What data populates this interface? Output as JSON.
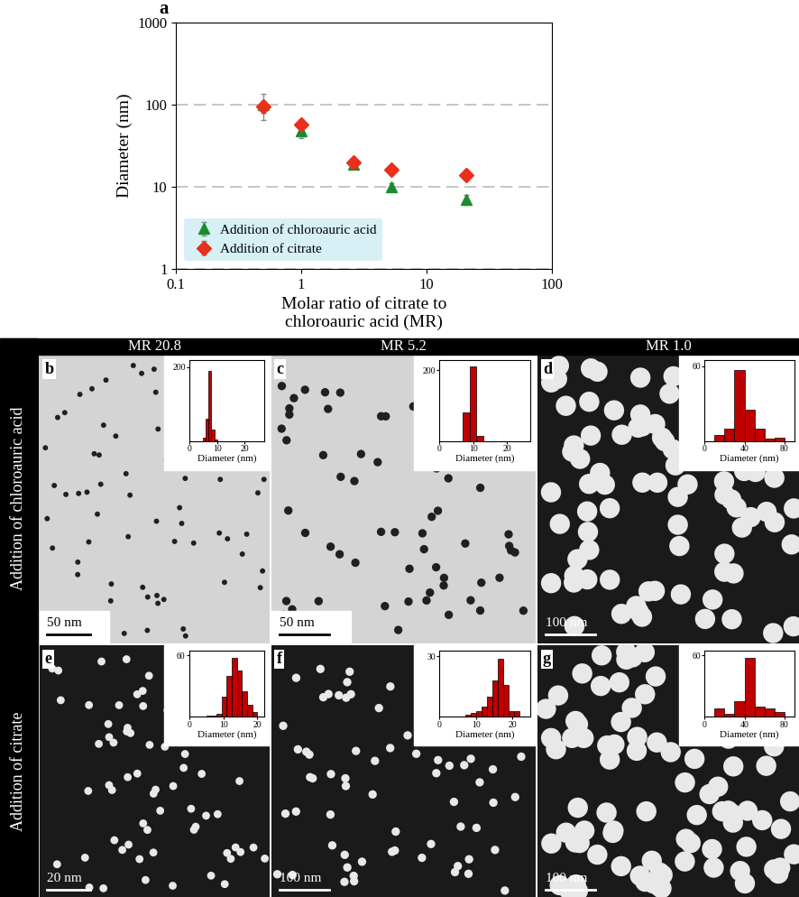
{
  "chart_data": [
    {
      "type": "scatter",
      "panel": "a",
      "xlabel": "Molar ratio of citrate to\nchloroauric acid (MR)",
      "ylabel": "Diameter (nm)",
      "log": true,
      "xlim": [
        0.1,
        100
      ],
      "xticks": [
        0.1,
        1,
        10,
        100
      ],
      "ylim": [
        1,
        1000
      ],
      "yticks": [
        1,
        10,
        100,
        1000
      ],
      "grid": "y",
      "legend": "lower left",
      "series": [
        {
          "name": "Addition of chloroauric acid",
          "color": "#1a8c2e",
          "marker": "triangle",
          "x": [
            0.5,
            1.0,
            2.6,
            5.2,
            20.8
          ],
          "values": [
            100,
            48,
            19,
            10,
            7
          ],
          "errors": [
            35,
            9,
            2,
            1,
            1
          ]
        },
        {
          "name": "Addition of citrate",
          "color": "#e8301c",
          "marker": "diamond",
          "x": [
            0.5,
            1.0,
            2.6,
            5.2,
            20.8
          ],
          "values": [
            95,
            57,
            20,
            16,
            14
          ],
          "errors": [
            15,
            10,
            2,
            2,
            2
          ]
        }
      ]
    },
    {
      "type": "histogram",
      "panel": "b",
      "scale_bar": "50 nm",
      "xlabel": "Diameter (nm)",
      "bins": [
        5,
        6,
        7,
        8,
        9,
        10
      ],
      "counts": [
        10,
        60,
        190,
        30,
        5
      ],
      "color": "#c00000",
      "xlim": [
        0,
        27
      ],
      "xticks": [
        0,
        10,
        20
      ],
      "ylim": [
        0,
        220
      ],
      "yticks": [
        200
      ]
    },
    {
      "type": "histogram",
      "panel": "c",
      "scale_bar": "50 nm",
      "xlabel": "Diameter (nm)",
      "bins": [
        7,
        9,
        11,
        13
      ],
      "counts": [
        80,
        210,
        15
      ],
      "color": "#c00000",
      "xlim": [
        0,
        27
      ],
      "xticks": [
        0,
        10,
        20
      ],
      "ylim": [
        0,
        230
      ],
      "yticks": [
        200
      ]
    },
    {
      "type": "histogram",
      "panel": "d",
      "scale_bar": "100 nm",
      "xlabel": "Diameter (nm)",
      "bins": [
        10,
        20,
        30,
        40,
        50,
        60,
        70,
        80
      ],
      "counts": [
        5,
        10,
        57,
        25,
        10,
        2,
        3
      ],
      "color": "#c00000",
      "xlim": [
        0,
        90
      ],
      "xticks": [
        0,
        40,
        80
      ],
      "ylim": [
        0,
        65
      ],
      "yticks": [
        60
      ]
    },
    {
      "type": "histogram",
      "panel": "e",
      "scale_bar": "20 nm",
      "xlabel": "Diameter (nm)",
      "bins": [
        5,
        6.5,
        8,
        9.5,
        11,
        12.5,
        14,
        15.5,
        17,
        18.5,
        20
      ],
      "counts": [
        1,
        1,
        3,
        20,
        40,
        58,
        45,
        25,
        12,
        5
      ],
      "color": "#c00000",
      "xlim": [
        0,
        22
      ],
      "xticks": [
        0,
        10,
        20
      ],
      "ylim": [
        0,
        65
      ],
      "yticks": [
        60
      ]
    },
    {
      "type": "histogram",
      "panel": "f",
      "scale_bar": "100 nm",
      "xlabel": "Diameter (nm)",
      "bins": [
        7,
        8.5,
        10,
        11.5,
        13,
        14.5,
        16,
        17.5,
        19,
        20.5,
        22
      ],
      "counts": [
        1,
        2,
        3,
        5,
        10,
        18,
        29,
        16,
        3,
        3
      ],
      "color": "#c00000",
      "xlim": [
        0,
        25
      ],
      "xticks": [
        0,
        10,
        20
      ],
      "ylim": [
        0,
        33
      ],
      "yticks": [
        30
      ]
    },
    {
      "type": "histogram",
      "panel": "g",
      "scale_bar": "100 nm",
      "xlabel": "Diameter (nm)",
      "bins": [
        10,
        20,
        30,
        40,
        50,
        60,
        70,
        80
      ],
      "counts": [
        8,
        3,
        15,
        58,
        10,
        8,
        5
      ],
      "color": "#c00000",
      "xlim": [
        0,
        90
      ],
      "xticks": [
        0,
        40,
        80
      ],
      "ylim": [
        0,
        65
      ],
      "yticks": [
        60
      ]
    }
  ],
  "grid_headers": {
    "columns": [
      "MR 20.8",
      "MR 5.2",
      "MR 1.0"
    ],
    "rows": [
      "Addition of chloroauric acid",
      "Addition of citrate"
    ]
  }
}
